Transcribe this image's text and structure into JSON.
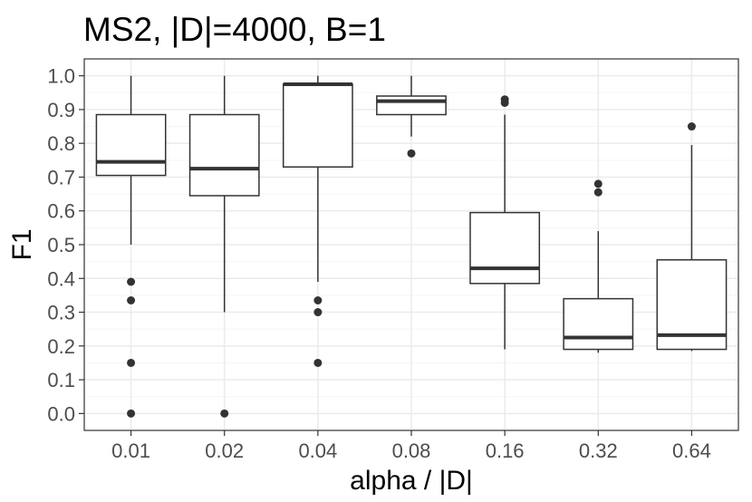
{
  "chart_data": {
    "type": "boxplot",
    "title": "MS2, |D|=4000, B=1",
    "xlabel": "alpha / |D|",
    "ylabel": "F1",
    "ylim": [
      -0.05,
      1.05
    ],
    "y_ticks": [
      "0.0",
      "0.1",
      "0.2",
      "0.3",
      "0.4",
      "0.5",
      "0.6",
      "0.7",
      "0.8",
      "0.9",
      "1.0"
    ],
    "grid": true,
    "categories": [
      "0.01",
      "0.02",
      "0.04",
      "0.08",
      "0.16",
      "0.32",
      "0.64"
    ],
    "boxes": [
      {
        "category": "0.01",
        "whisker_low": 0.5,
        "q1": 0.705,
        "median": 0.745,
        "q3": 0.885,
        "whisker_high": 1.0,
        "outliers": [
          0.39,
          0.335,
          0.15,
          0.0
        ]
      },
      {
        "category": "0.02",
        "whisker_low": 0.3,
        "q1": 0.645,
        "median": 0.725,
        "q3": 0.885,
        "whisker_high": 1.0,
        "outliers": [
          0.0
        ]
      },
      {
        "category": "0.04",
        "whisker_low": 0.39,
        "q1": 0.73,
        "median": 0.975,
        "q3": 0.975,
        "whisker_high": 1.0,
        "outliers": [
          0.335,
          0.3,
          0.15
        ]
      },
      {
        "category": "0.08",
        "whisker_low": 0.82,
        "q1": 0.885,
        "median": 0.925,
        "q3": 0.94,
        "whisker_high": 1.0,
        "outliers": [
          0.77
        ]
      },
      {
        "category": "0.16",
        "whisker_low": 0.19,
        "q1": 0.385,
        "median": 0.43,
        "q3": 0.595,
        "whisker_high": 0.885,
        "outliers": [
          0.93,
          0.92
        ]
      },
      {
        "category": "0.32",
        "whisker_low": 0.18,
        "q1": 0.19,
        "median": 0.225,
        "q3": 0.34,
        "whisker_high": 0.54,
        "outliers": [
          0.68,
          0.655
        ]
      },
      {
        "category": "0.64",
        "whisker_low": 0.185,
        "q1": 0.19,
        "median": 0.232,
        "q3": 0.455,
        "whisker_high": 0.795,
        "outliers": [
          0.85
        ]
      }
    ],
    "colors": {
      "panel": "#ffffff",
      "grid_major": "#ebebeb",
      "grid_minor": "#f5f5f5",
      "box": "#333333",
      "tick_label": "#4d4d4d"
    }
  }
}
